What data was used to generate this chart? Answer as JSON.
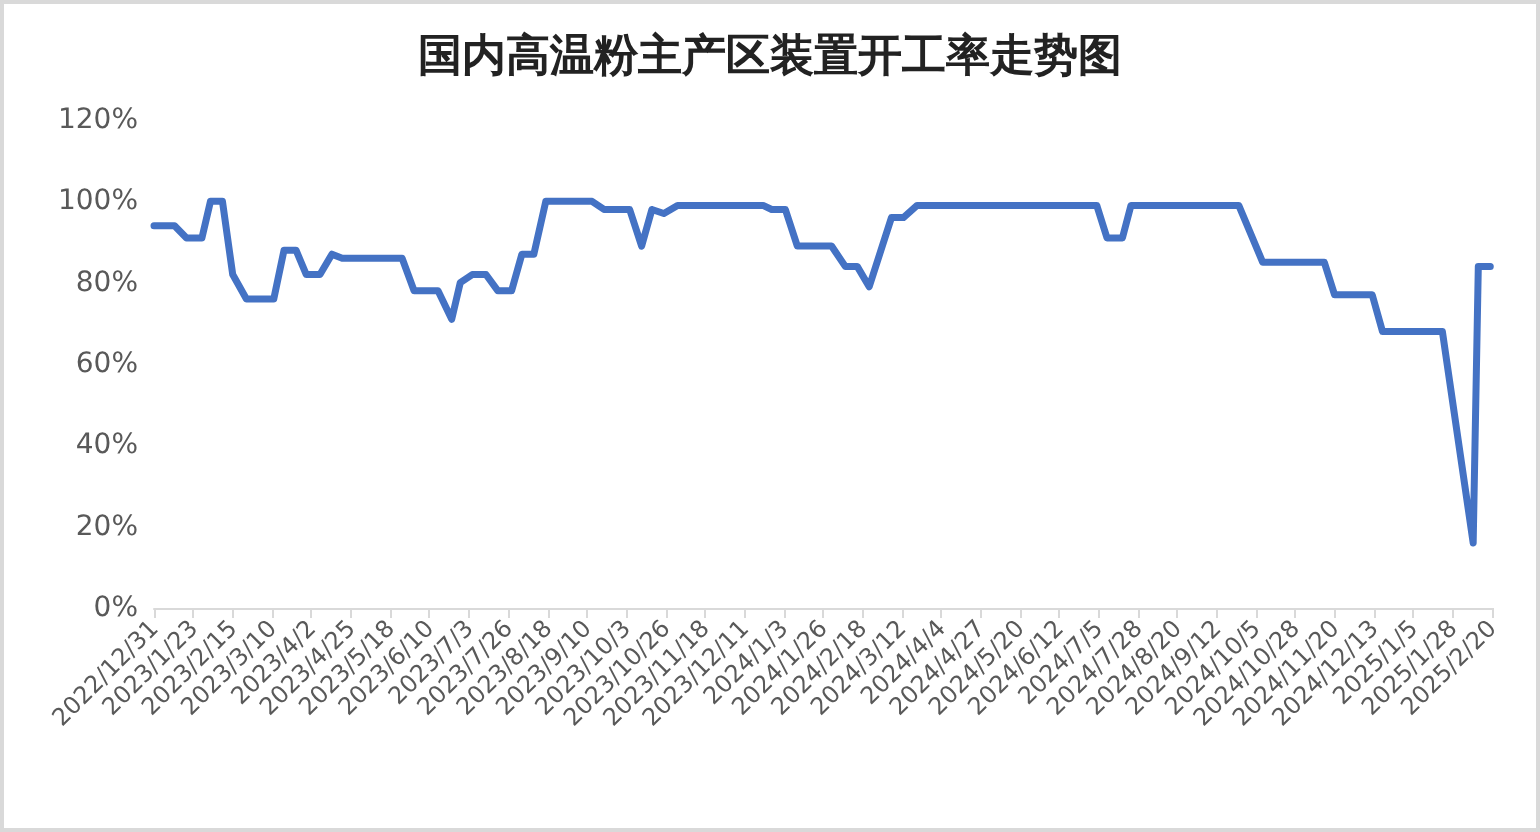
{
  "chart_data": {
    "type": "line",
    "title": "国内高温粉主产区装置开工率走势图",
    "series": [
      {
        "color": "#4472c4",
        "x": [
          "2022-12-31",
          "2023-01-12",
          "2023-01-19",
          "2023-01-28",
          "2023-02-02",
          "2023-02-09",
          "2023-02-15",
          "2023-02-23",
          "2023-03-11",
          "2023-03-17",
          "2023-03-24",
          "2023-03-30",
          "2023-04-07",
          "2023-04-14",
          "2023-04-20",
          "2023-05-25",
          "2023-06-01",
          "2023-06-15",
          "2023-06-23",
          "2023-06-28",
          "2023-07-05",
          "2023-07-13",
          "2023-07-20",
          "2023-07-28",
          "2023-08-03",
          "2023-08-10",
          "2023-08-17",
          "2023-09-13",
          "2023-09-20",
          "2023-10-05",
          "2023-10-12",
          "2023-10-18",
          "2023-10-25",
          "2023-11-02",
          "2023-12-22",
          "2023-12-27",
          "2024-01-04",
          "2024-01-11",
          "2024-01-31",
          "2024-02-08",
          "2024-02-15",
          "2024-02-22",
          "2024-03-06",
          "2024-03-13",
          "2024-03-21",
          "2024-07-04",
          "2024-07-10",
          "2024-07-19",
          "2024-07-24",
          "2024-09-25",
          "2024-10-09",
          "2024-11-14",
          "2024-11-20",
          "2024-12-12",
          "2024-12-18",
          "2025-01-22",
          "2025-02-09",
          "2025-02-12",
          "2025-02-19"
        ],
        "values": [
          94,
          94,
          91,
          91,
          100,
          100,
          82,
          76,
          76,
          88,
          88,
          82,
          82,
          87,
          86,
          86,
          78,
          78,
          71,
          80,
          82,
          82,
          78,
          78,
          87,
          87,
          100,
          100,
          98,
          98,
          89,
          98,
          97,
          99,
          99,
          98,
          98,
          89,
          89,
          84,
          84,
          79,
          96,
          96,
          99,
          99,
          91,
          91,
          99,
          99,
          85,
          85,
          77,
          77,
          68,
          68,
          16,
          84,
          84
        ]
      }
    ],
    "xlim": [
      "2022-12-31",
      "2025-02-20"
    ],
    "xticks": [
      {
        "value": "2022-12-31",
        "label": "2022/12/31"
      },
      {
        "value": "2023-01-23",
        "label": "2023/1/23"
      },
      {
        "value": "2023-02-15",
        "label": "2023/2/15"
      },
      {
        "value": "2023-03-10",
        "label": "2023/3/10"
      },
      {
        "value": "2023-04-02",
        "label": "2023/4/2"
      },
      {
        "value": "2023-04-25",
        "label": "2023/4/25"
      },
      {
        "value": "2023-05-18",
        "label": "2023/5/18"
      },
      {
        "value": "2023-06-10",
        "label": "2023/6/10"
      },
      {
        "value": "2023-07-03",
        "label": "2023/7/3"
      },
      {
        "value": "2023-07-26",
        "label": "2023/7/26"
      },
      {
        "value": "2023-08-18",
        "label": "2023/8/18"
      },
      {
        "value": "2023-09-10",
        "label": "2023/9/10"
      },
      {
        "value": "2023-10-03",
        "label": "2023/10/3"
      },
      {
        "value": "2023-10-26",
        "label": "2023/10/26"
      },
      {
        "value": "2023-11-18",
        "label": "2023/11/18"
      },
      {
        "value": "2023-12-11",
        "label": "2023/12/11"
      },
      {
        "value": "2024-01-03",
        "label": "2024/1/3"
      },
      {
        "value": "2024-01-26",
        "label": "2024/1/26"
      },
      {
        "value": "2024-02-18",
        "label": "2024/2/18"
      },
      {
        "value": "2024-03-12",
        "label": "2024/3/12"
      },
      {
        "value": "2024-04-04",
        "label": "2024/4/4"
      },
      {
        "value": "2024-04-27",
        "label": "2024/4/27"
      },
      {
        "value": "2024-05-20",
        "label": "2024/5/20"
      },
      {
        "value": "2024-06-12",
        "label": "2024/6/12"
      },
      {
        "value": "2024-07-05",
        "label": "2024/7/5"
      },
      {
        "value": "2024-07-28",
        "label": "2024/7/28"
      },
      {
        "value": "2024-08-20",
        "label": "2024/8/20"
      },
      {
        "value": "2024-09-12",
        "label": "2024/9/12"
      },
      {
        "value": "2024-10-05",
        "label": "2024/10/5"
      },
      {
        "value": "2024-10-28",
        "label": "2024/10/28"
      },
      {
        "value": "2024-11-20",
        "label": "2024/11/20"
      },
      {
        "value": "2024-12-13",
        "label": "2024/12/13"
      },
      {
        "value": "2025-01-05",
        "label": "2025/1/5"
      },
      {
        "value": "2025-01-28",
        "label": "2025/1/28"
      },
      {
        "value": "2025-02-20",
        "label": "2025/2/20"
      }
    ],
    "ylim": [
      0,
      120
    ],
    "yticks": [
      {
        "value": 0,
        "label": "0%"
      },
      {
        "value": 20,
        "label": "20%"
      },
      {
        "value": 40,
        "label": "40%"
      },
      {
        "value": 60,
        "label": "60%"
      },
      {
        "value": 80,
        "label": "80%"
      },
      {
        "value": 100,
        "label": "100%"
      },
      {
        "value": 120,
        "label": "120%"
      }
    ],
    "grid": false,
    "marker": "none",
    "line_style": "solid"
  }
}
